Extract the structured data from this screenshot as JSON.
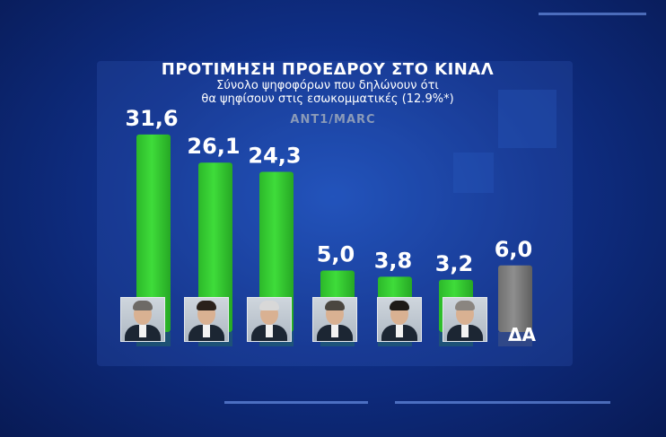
{
  "title": "ΠΡΟΤΙΜΗΣΗ ΠΡΟΕΔΡΟΥ ΣΤΟ ΚΙΝΑΛ",
  "subtitle_line1": "Σύνολο ψηφοφόρων που δηλώνουν ότι",
  "subtitle_line2": "θα ψηφίσουν στις εσωκομματικές (12.9%*)",
  "source": "ANT1/MARC",
  "colors": {
    "bar_main": "#3fdc3a",
    "bar_other": "#8e8e8e",
    "background": "#0f2f86"
  },
  "chart_data": {
    "type": "bar",
    "title": "ΠΡΟΤΙΜΗΣΗ ΠΡΟΕΔΡΟΥ ΣΤΟ ΚΙΝΑΛ",
    "categories": [
      "",
      "",
      "",
      "",
      "",
      "",
      "ΔΑ"
    ],
    "values": [
      31.6,
      26.1,
      24.3,
      5.0,
      3.8,
      3.2,
      6.0
    ],
    "value_labels": [
      "31,6",
      "26,1",
      "24,3",
      "5,0",
      "3,8",
      "3,2",
      "6,0"
    ],
    "ylim": [
      0,
      35
    ],
    "grid": false,
    "legend": "none"
  },
  "bar_kinds": [
    "candidate",
    "candidate",
    "candidate",
    "candidate",
    "candidate",
    "candidate",
    "other"
  ],
  "photo_hair_colors": [
    "#6d6a66",
    "#2a211b",
    "#d8d8d8",
    "#4a4640",
    "#1e1a17",
    "#8a8580"
  ]
}
